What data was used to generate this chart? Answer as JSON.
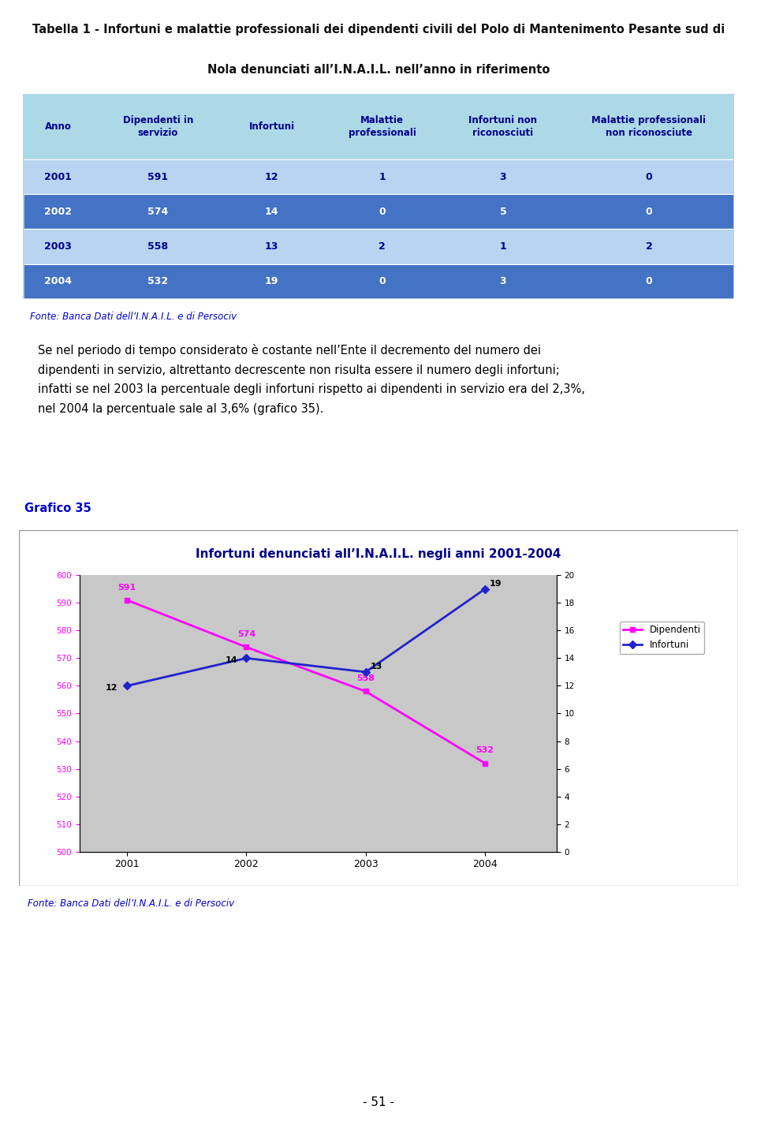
{
  "title_line1": "Tabella 1 - Infortuni e malattie professionali dei dipendenti civili del Polo di Mantenimento Pesante sud di",
  "title_line2": "Nola denunciati all’I.N.A.I.L. nell’anno in riferimento",
  "table_headers": [
    "Anno",
    "Dipendenti in\nservizio",
    "Infortuni",
    "Malattie\nprofessionali",
    "Infortuni non\nriconosciuti",
    "Malattie professionali\nnon riconosciute"
  ],
  "table_data": [
    [
      "2001",
      "591",
      "12",
      "1",
      "3",
      "0"
    ],
    [
      "2002",
      "574",
      "14",
      "0",
      "5",
      "0"
    ],
    [
      "2003",
      "558",
      "13",
      "2",
      "1",
      "2"
    ],
    [
      "2004",
      "532",
      "19",
      "0",
      "3",
      "0"
    ]
  ],
  "fonte_table": "Fonte: Banca Dati dell’I.N.A.I.L. e di Persociv",
  "body_text": "Se nel periodo di tempo considerato è costante nell’Ente il decremento del numero dei\ndipendenti in servizio, altrettanto decrescente non risulta essere il numero degli infortuni;\ninfatti se nel 2003 la percentuale degli infortuni rispetto ai dipendenti in servizio era del 2,3%,\nnel 2004 la percentuale sale al 3,6% (grafico 35).",
  "grafico_label": "Grafico 35",
  "chart_title": "Infortuni denunciati all’I.N.A.I.L. negli anni 2001-2004",
  "years": [
    2001,
    2002,
    2003,
    2004
  ],
  "dipendenti": [
    591,
    574,
    558,
    532
  ],
  "infortuni": [
    12,
    14,
    13,
    19
  ],
  "dipendenti_color": "#FF00FF",
  "infortuni_color": "#2222CC",
  "chart_bg_color": "#C8C8C8",
  "fonte_chart": "Fonte: Banca Dati dell’I.N.A.I.L. e di Persociv",
  "left_yticks": [
    500,
    510,
    520,
    530,
    540,
    550,
    560,
    570,
    580,
    590,
    600
  ],
  "right_yticks": [
    0,
    2,
    4,
    6,
    8,
    10,
    12,
    14,
    16,
    18,
    20
  ],
  "page_number": "- 51 -",
  "header_bg_color": "#ADD8E6",
  "row_color_light": "#B8D4F0",
  "row_color_dark": "#4472C4",
  "table_text_dark_blue": "#00008B",
  "table_text_white": "#FFFFFF"
}
